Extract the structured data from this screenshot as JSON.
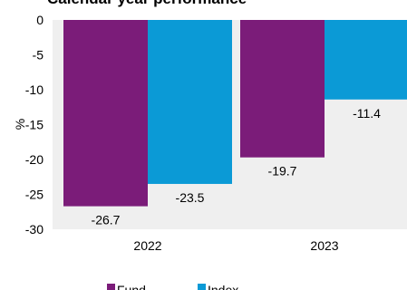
{
  "chart_data": {
    "type": "bar",
    "title": "Calendar year performance",
    "ylabel": "%",
    "xlabel": "",
    "categories": [
      "2022",
      "2023"
    ],
    "series": [
      {
        "name": "Fund",
        "values": [
          -26.7,
          -19.7
        ],
        "color": "#7b1c79"
      },
      {
        "name": "Index",
        "values": [
          -23.5,
          -11.4
        ],
        "color": "#0b9ad6"
      }
    ],
    "data_labels": [
      [
        "-26.7",
        "-19.7"
      ],
      [
        "-23.5",
        "-11.4"
      ]
    ],
    "ylim": [
      -30,
      0
    ],
    "y_ticks": [
      "0",
      "-5",
      "-10",
      "-15",
      "-20",
      "-25",
      "-30"
    ],
    "grid": false,
    "plot_background": "#efefef",
    "legend_position": "bottom"
  }
}
